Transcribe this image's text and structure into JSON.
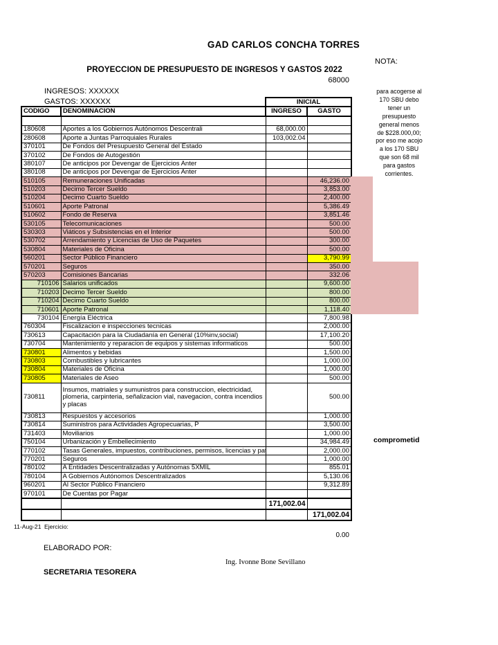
{
  "header": {
    "org_title": "GAD CARLOS CONCHA TORRES",
    "doc_title": "PROYECCION DE PRESUPUESTO DE INGRESOS Y GASTOS  2022",
    "code_number": "68000",
    "ingresos_label": "INGRESOS: XXXXXX",
    "gastos_label": "GASTOS: XXXXXX",
    "nota_label": "NOTA:",
    "nota_text": "para acogerse al\n170 SBU debo\ntener un\npresupuesto\ngeneral menos\nde $228.000,00;\npor eso me acojo\na los 170 SBU\nque son 68 mil\npara gastos\ncorrientes."
  },
  "table": {
    "group_header": "INICIAL",
    "columns": [
      "CODIGO",
      "DENOMINACION",
      "INGRESO",
      "GASTO"
    ],
    "rows": [
      {
        "code": "180608",
        "name": "Aportes a los Gobiernos Autónomos Descentrali",
        "ingreso": "68,000.00",
        "gasto": ""
      },
      {
        "code": "280608",
        "name": "Aporte a Juntas Parroquiales Rurales",
        "ingreso": "103,002.04",
        "gasto": ""
      },
      {
        "code": "370101",
        "name": "De Fondos del Presupuesto General del Estado",
        "ingreso": "",
        "gasto": ""
      },
      {
        "code": "370102",
        "name": "De Fondos de Autogestión",
        "ingreso": "",
        "gasto": ""
      },
      {
        "code": "380107",
        "name": "De anticipos por Devengar de Ejercicios Anter",
        "ingreso": "",
        "gasto": ""
      },
      {
        "code": "380108",
        "name": "De anticipos por Devengar de Ejercicios Anter",
        "ingreso": "",
        "gasto": ""
      },
      {
        "code": "510105",
        "name": "Remuneraciones Unificadas",
        "ingreso": "",
        "gasto": "46,236.00",
        "bg": "pink"
      },
      {
        "code": "510203",
        "name": "Decimo Tercer Sueldo",
        "ingreso": "",
        "gasto": "3,853.00",
        "bg": "pink"
      },
      {
        "code": "510204",
        "name": "Decimo Cuarto Sueldo",
        "ingreso": "",
        "gasto": "2,400.00",
        "bg": "pink"
      },
      {
        "code": "510601",
        "name": "Aporte Patronal",
        "ingreso": "",
        "gasto": "5,386.49",
        "bg": "pink"
      },
      {
        "code": "510602",
        "name": "Fondo de Reserva",
        "ingreso": "",
        "gasto": "3,851.46",
        "bg": "pink"
      },
      {
        "code": "530105",
        "name": "Telecomunicaciones",
        "ingreso": "",
        "gasto": "500.00",
        "bg": "pink"
      },
      {
        "code": "530303",
        "name": "Viáticos y Subsistencias en el Interior",
        "ingreso": "",
        "gasto": "500.00",
        "bg": "pink"
      },
      {
        "code": "530702",
        "name": "Arrendamiento y Licencias de Uso de Paquetes",
        "ingreso": "",
        "gasto": "300.00",
        "bg": "pink"
      },
      {
        "code": "530804",
        "name": "Materiales de Oficina",
        "ingreso": "",
        "gasto": "500.00",
        "bg": "pink"
      },
      {
        "code": "560201",
        "name": "Sector Público Financiero",
        "ingreso": "",
        "gasto": "3,790.99",
        "bg": "pink",
        "gasto_bg": "yellow"
      },
      {
        "code": "570201",
        "name": "Seguros",
        "ingreso": "",
        "gasto": "350.00",
        "bg": "pink"
      },
      {
        "code": "570203",
        "name": "Comisiones Bancarias",
        "ingreso": "",
        "gasto": "332.06",
        "bg": "pink"
      },
      {
        "code": "710106",
        "name": "Salarios unificados",
        "ingreso": "",
        "gasto": "9,600.00",
        "bg": "green",
        "code_align": "right"
      },
      {
        "code": "710203",
        "name": "Decimo Tercer Sueldo",
        "ingreso": "",
        "gasto": "800.00",
        "bg": "green",
        "code_align": "right"
      },
      {
        "code": "710204",
        "name": "Decimo Cuarto Sueldo",
        "ingreso": "",
        "gasto": "800.00",
        "bg": "green",
        "code_align": "right"
      },
      {
        "code": "710601",
        "name": "Aporte Patronal",
        "ingreso": "",
        "gasto": "1,118.40",
        "bg": "green",
        "code_align": "right"
      },
      {
        "code": "730104",
        "name": "Energía Eléctrica",
        "ingreso": "",
        "gasto": "7,800.98",
        "code_align": "right"
      },
      {
        "code": "760304",
        "name": "Fiscalizacion e inspecciones tecnicas",
        "ingreso": "",
        "gasto": "2,000.00"
      },
      {
        "code": "730613",
        "name": "Capacitación para la Ciudadanía en General (10%inv,social)",
        "ingreso": "",
        "gasto": "17,100.20"
      },
      {
        "code": "730704",
        "name": "Mantenimiento y reparacion de equipos y sistemas informaticos",
        "ingreso": "",
        "gasto": "500.00"
      },
      {
        "code": "730801",
        "name": "Alimentos y bebidas",
        "ingreso": "",
        "gasto": "1,500.00",
        "code_bg": "yellow"
      },
      {
        "code": "730803",
        "name": "Combustibles y lubricantes",
        "ingreso": "",
        "gasto": "1,000.00",
        "code_bg": "yellow"
      },
      {
        "code": "730804",
        "name": "Materiales de Oficina",
        "ingreso": "",
        "gasto": "1,000.00",
        "code_bg": "yellow"
      },
      {
        "code": "730805",
        "name": "Materiales de Aseo",
        "ingreso": "",
        "gasto": "500.00",
        "code_bg": "yellow"
      },
      {
        "code": "730811",
        "name": "Insumos, matriales y sumunistros para construccion, electricidad, plomeria, carpinteria, señalizacion vial, navegacion, contra incendios y placas",
        "ingreso": "",
        "gasto": "500.00",
        "tall": true
      },
      {
        "code": "730813",
        "name": "Respuestos y accesorios",
        "ingreso": "",
        "gasto": "1,000.00"
      },
      {
        "code": "730814",
        "name": "Suministros para Actividades Agropecuarias, P",
        "ingreso": "",
        "gasto": "3,500.00"
      },
      {
        "code": "731403",
        "name": "Moviliarios",
        "ingreso": "",
        "gasto": "1,000.00"
      },
      {
        "code": "750104",
        "name": "Urbanización y Embellecimiento",
        "ingreso": "",
        "gasto": "34,984.49"
      },
      {
        "code": "770102",
        "name": "Tasas Generales, impuestos, contribuciones, permisos, licencias y patenctes",
        "ingreso": "",
        "gasto": "2,000.00"
      },
      {
        "code": "770201",
        "name": "Seguros",
        "ingreso": "",
        "gasto": "1,000.00"
      },
      {
        "code": "780102",
        "name": "A Entidades Descentralizadas y Autónomas 5XMIL",
        "ingreso": "",
        "gasto": "855.01"
      },
      {
        "code": "780104",
        "name": "A Gobiernos Autónomos Descentralizados",
        "ingreso": "",
        "gasto": "5,130.06"
      },
      {
        "code": "960201",
        "name": "Al Sector Público Financiero",
        "ingreso": "",
        "gasto": "9,312.89"
      },
      {
        "code": "970101",
        "name": "De Cuentas por Pagar",
        "ingreso": "",
        "gasto": ""
      }
    ],
    "totals": {
      "ingreso": "171,002.04",
      "gasto": "171,002.04"
    }
  },
  "annotations": {
    "comprometido": "comprometid"
  },
  "footer": {
    "date": "11-Aug-21",
    "ejercicio_label": "Ejercicio:",
    "ejercicio_value": "0.00",
    "elaborado_label": "ELABORADO POR:",
    "signature_name": "Ing. Ivonne Bone Sevillano",
    "signature_title": "SECRETARIA TESORERA"
  },
  "colors": {
    "pink": "#e6b8b7",
    "green": "#d8e4bc",
    "highlight_yellow": "#ffff00"
  }
}
